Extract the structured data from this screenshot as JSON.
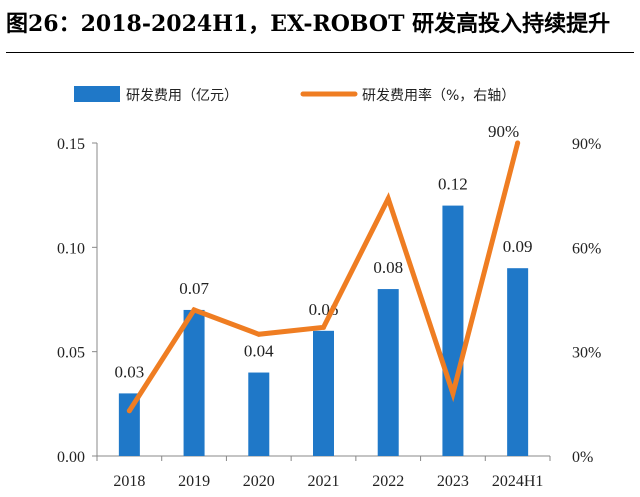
{
  "chart_data": {
    "type": "bar+line",
    "title": "图26：2018-2024H1，EX-ROBOT 研发高投入持续提升",
    "categories": [
      "2018",
      "2019",
      "2020",
      "2021",
      "2022",
      "2023",
      "2024H1"
    ],
    "series": [
      {
        "name": "研发费用（亿元）",
        "type": "bar",
        "axis": "left",
        "color": "#1f78c8",
        "values": [
          0.03,
          0.07,
          0.04,
          0.06,
          0.08,
          0.12,
          0.09
        ],
        "labels": [
          "0.03",
          "0.07",
          "0.04",
          "0.06",
          "0.08",
          "0.12",
          "0.09"
        ]
      },
      {
        "name": "研发费用率（%，右轴）",
        "type": "line",
        "axis": "right",
        "color": "#ef7d22",
        "values": [
          13,
          42,
          35,
          37,
          74,
          18,
          90
        ]
      }
    ],
    "line_point_labels": {
      "6": "90%"
    },
    "y_left": {
      "min": 0,
      "max": 0.15,
      "ticks": [
        "0.00",
        "0.05",
        "0.10",
        "0.15"
      ]
    },
    "y_right": {
      "min": 0,
      "max": 90,
      "ticks": [
        "0%",
        "30%",
        "60%",
        "90%"
      ]
    },
    "legend_position": "top",
    "grid": false
  }
}
